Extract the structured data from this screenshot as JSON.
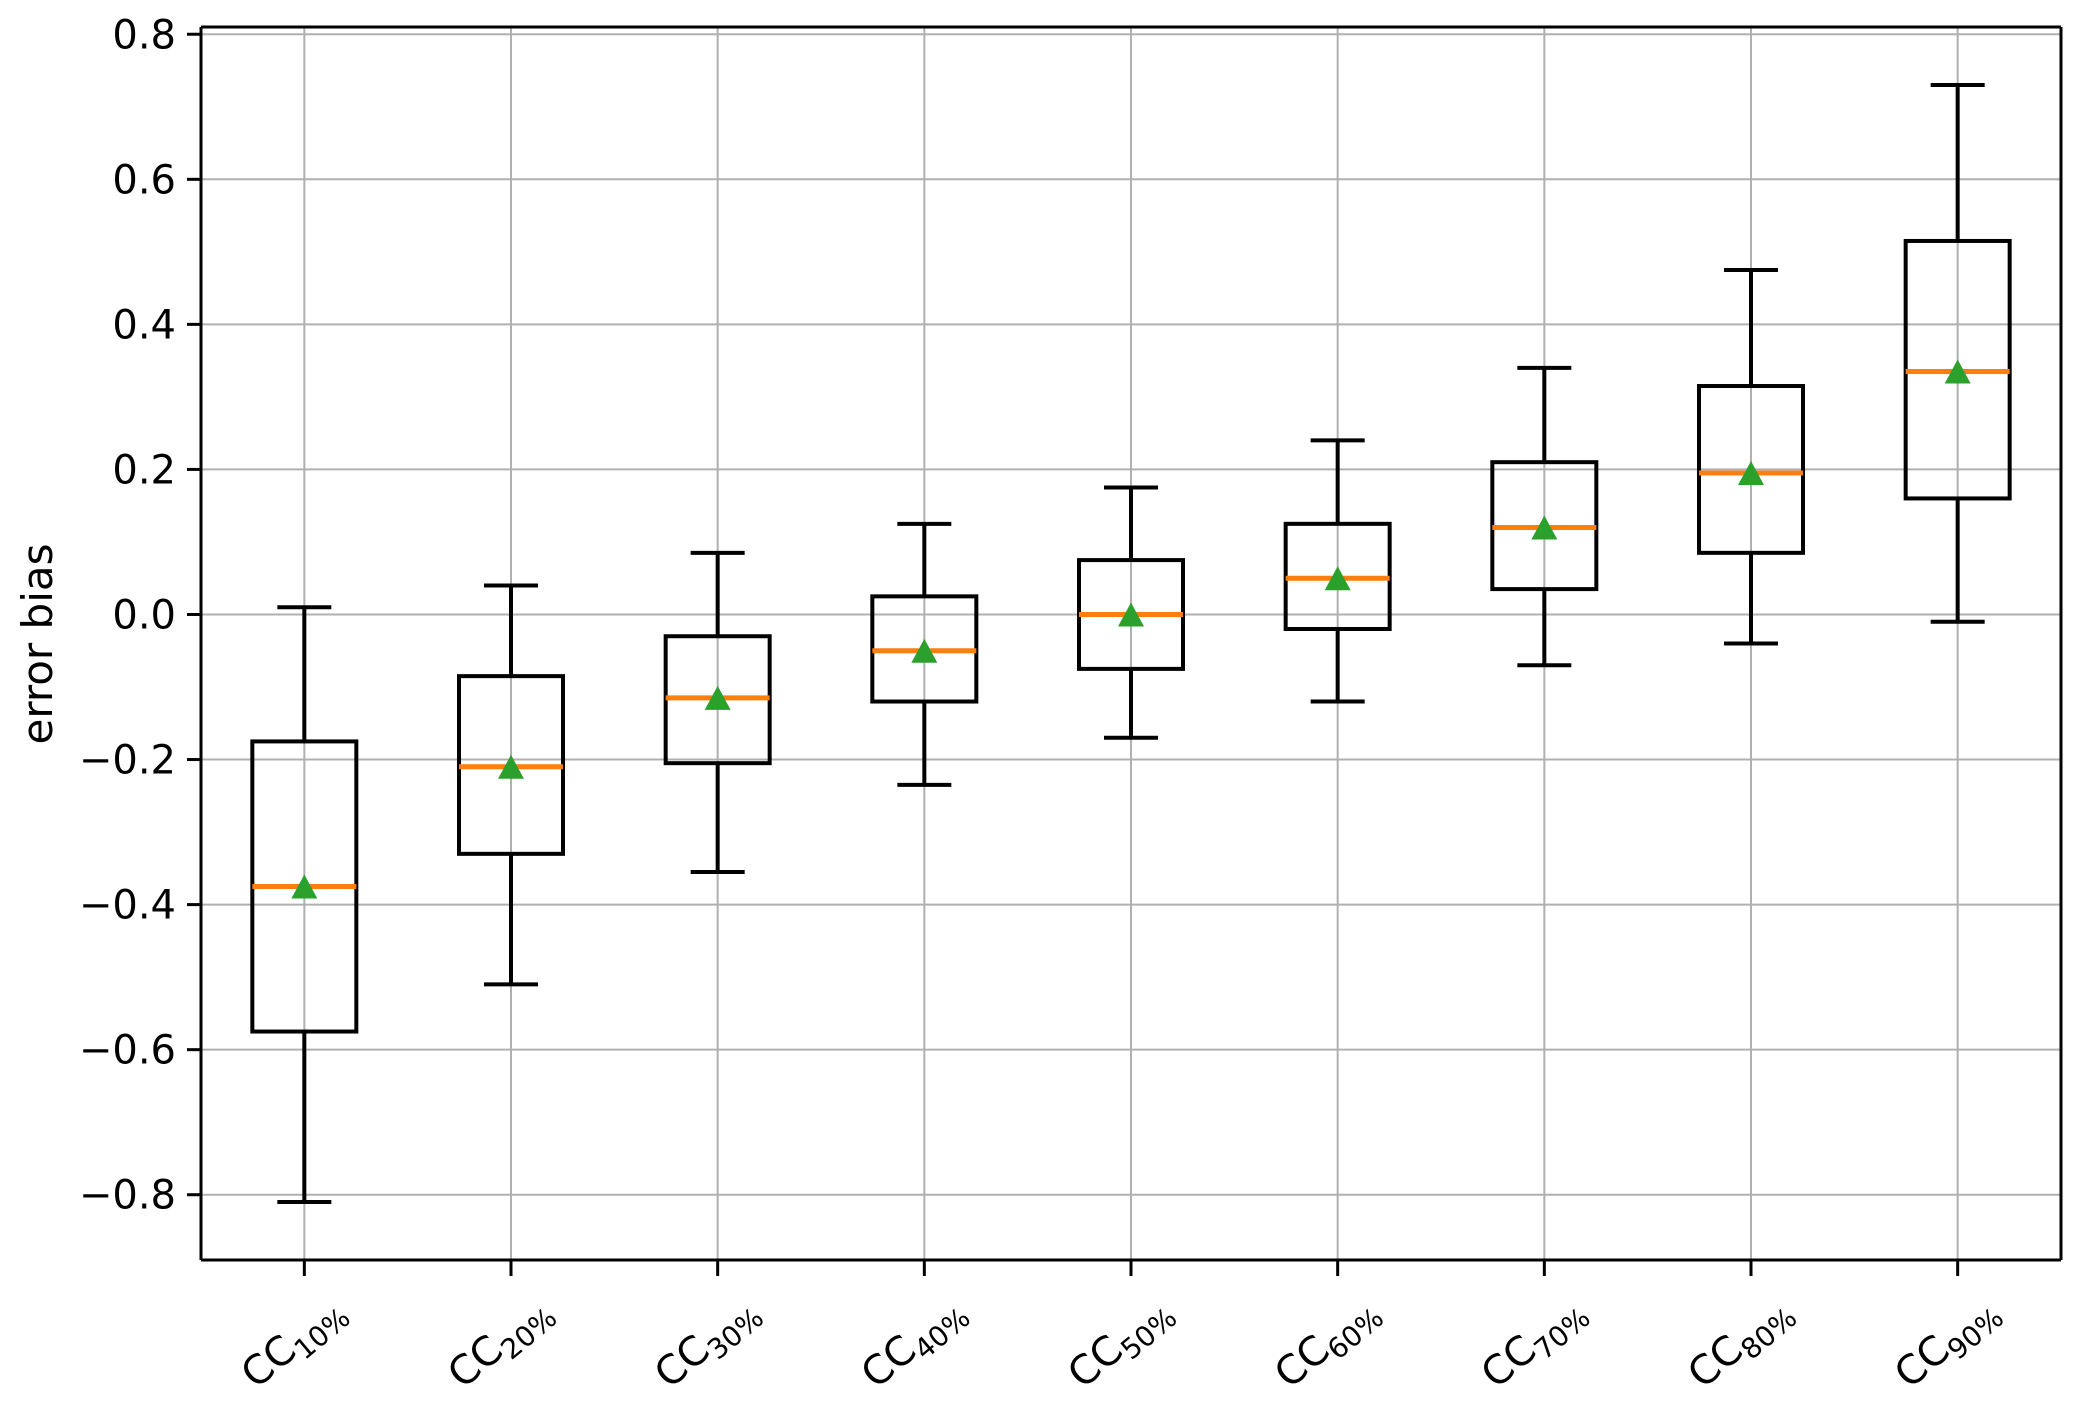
{
  "chart_data": {
    "type": "box",
    "title": "",
    "xlabel": "",
    "ylabel": "error bias",
    "grid": true,
    "legend": "none",
    "ylim": [
      -0.89,
      0.81
    ],
    "yticks": {
      "values": [
        0.8,
        0.6,
        0.4,
        0.2,
        0.0,
        -0.2,
        -0.4,
        -0.6,
        -0.8
      ],
      "labels": [
        "0.8",
        "0.6",
        "0.4",
        "0.2",
        "0.0",
        "−0.2",
        "−0.4",
        "−0.6",
        "−0.8"
      ]
    },
    "categories": [
      "CC10%",
      "CC20%",
      "CC30%",
      "CC40%",
      "CC50%",
      "CC60%",
      "CC70%",
      "CC80%",
      "CC90%"
    ],
    "xtick_rotation_deg": -40,
    "boxes": [
      {
        "label_main": "CC",
        "label_sub": "10%",
        "whislo": -0.81,
        "q1": -0.575,
        "med": -0.375,
        "mean": -0.375,
        "q3": -0.175,
        "whishi": 0.01
      },
      {
        "label_main": "CC",
        "label_sub": "20%",
        "whislo": -0.51,
        "q1": -0.33,
        "med": -0.21,
        "mean": -0.21,
        "q3": -0.085,
        "whishi": 0.04
      },
      {
        "label_main": "CC",
        "label_sub": "30%",
        "whislo": -0.355,
        "q1": -0.205,
        "med": -0.115,
        "mean": -0.115,
        "q3": -0.03,
        "whishi": 0.085
      },
      {
        "label_main": "CC",
        "label_sub": "40%",
        "whislo": -0.235,
        "q1": -0.12,
        "med": -0.05,
        "mean": -0.05,
        "q3": 0.025,
        "whishi": 0.125
      },
      {
        "label_main": "CC",
        "label_sub": "50%",
        "whislo": -0.17,
        "q1": -0.075,
        "med": 0.0,
        "mean": 0.0,
        "q3": 0.075,
        "whishi": 0.175
      },
      {
        "label_main": "CC",
        "label_sub": "60%",
        "whislo": -0.12,
        "q1": -0.02,
        "med": 0.05,
        "mean": 0.05,
        "q3": 0.125,
        "whishi": 0.24
      },
      {
        "label_main": "CC",
        "label_sub": "70%",
        "whislo": -0.07,
        "q1": 0.035,
        "med": 0.12,
        "mean": 0.12,
        "q3": 0.21,
        "whishi": 0.34
      },
      {
        "label_main": "CC",
        "label_sub": "80%",
        "whislo": -0.04,
        "q1": 0.085,
        "med": 0.195,
        "mean": 0.195,
        "q3": 0.315,
        "whishi": 0.475
      },
      {
        "label_main": "CC",
        "label_sub": "90%",
        "whislo": -0.01,
        "q1": 0.16,
        "med": 0.335,
        "mean": 0.335,
        "q3": 0.515,
        "whishi": 0.73
      }
    ],
    "colors": {
      "box_edge": "#000000",
      "median": "#ff7f0e",
      "mean_marker": "#2ca02c",
      "grid": "#b0b0b0",
      "spine": "#000000",
      "background": "#ffffff"
    }
  }
}
